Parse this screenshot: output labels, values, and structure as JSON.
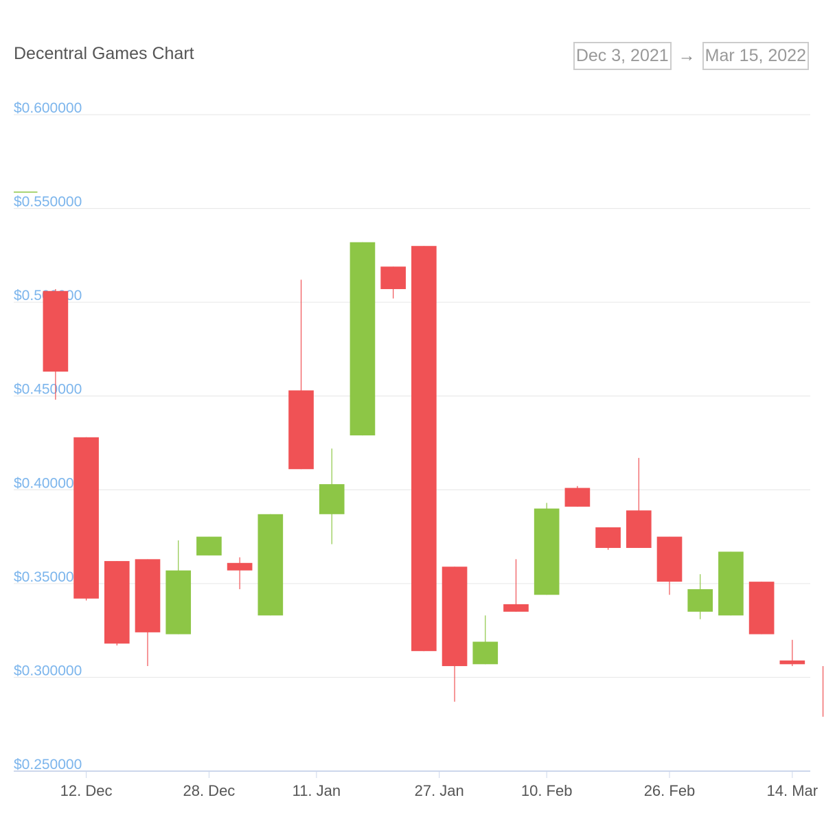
{
  "header": {
    "title": "Decentral Games Chart",
    "range_from": "Dec 3, 2021",
    "range_arrow": "→",
    "range_to": "Mar 15, 2022"
  },
  "colors": {
    "up": "#8dc646",
    "down": "#f05255",
    "grid": "#e6e6e6",
    "axis": "#ccd6eb"
  },
  "chart_data": {
    "type": "candlestick",
    "ylim": [
      0.25,
      0.6
    ],
    "y_ticks": [
      {
        "value": 0.6,
        "label": "$0.600000"
      },
      {
        "value": 0.55,
        "label": "$0.550000"
      },
      {
        "value": 0.5,
        "label": "$0.500000"
      },
      {
        "value": 0.45,
        "label": "$0.450000"
      },
      {
        "value": 0.4,
        "label": "$0.400000"
      },
      {
        "value": 0.35,
        "label": "$0.350000"
      },
      {
        "value": 0.3,
        "label": "$0.300000"
      },
      {
        "value": 0.25,
        "label": "$0.250000"
      }
    ],
    "x_ticks": [
      {
        "date": "2021-12-12",
        "label": "12. Dec"
      },
      {
        "date": "2021-12-28",
        "label": "28. Dec"
      },
      {
        "date": "2022-01-11",
        "label": "11. Jan"
      },
      {
        "date": "2022-01-27",
        "label": "27. Jan"
      },
      {
        "date": "2022-02-10",
        "label": "10. Feb"
      },
      {
        "date": "2022-02-26",
        "label": "26. Feb"
      },
      {
        "date": "2022-03-14",
        "label": "14. Mar"
      }
    ],
    "x_range": [
      "2021-12-03",
      "2022-03-15"
    ],
    "candles": [
      {
        "date": "2021-12-04",
        "open": 0.559,
        "high": 0.559,
        "low": 0.559,
        "close": 0.559
      },
      {
        "date": "2021-12-08",
        "open": 0.506,
        "high": 0.507,
        "low": 0.448,
        "close": 0.463
      },
      {
        "date": "2021-12-12",
        "open": 0.428,
        "high": 0.428,
        "low": 0.341,
        "close": 0.342
      },
      {
        "date": "2021-12-16",
        "open": 0.362,
        "high": 0.362,
        "low": 0.317,
        "close": 0.318
      },
      {
        "date": "2021-12-20",
        "open": 0.363,
        "high": 0.363,
        "low": 0.306,
        "close": 0.324
      },
      {
        "date": "2021-12-24",
        "open": 0.323,
        "high": 0.373,
        "low": 0.323,
        "close": 0.357
      },
      {
        "date": "2021-12-28",
        "open": 0.365,
        "high": 0.375,
        "low": 0.365,
        "close": 0.375
      },
      {
        "date": "2022-01-01",
        "open": 0.361,
        "high": 0.364,
        "low": 0.347,
        "close": 0.357
      },
      {
        "date": "2022-01-05",
        "open": 0.333,
        "high": 0.387,
        "low": 0.333,
        "close": 0.387
      },
      {
        "date": "2022-01-09",
        "open": 0.453,
        "high": 0.512,
        "low": 0.411,
        "close": 0.411
      },
      {
        "date": "2022-01-13",
        "open": 0.387,
        "high": 0.422,
        "low": 0.371,
        "close": 0.403
      },
      {
        "date": "2022-01-17",
        "open": 0.429,
        "high": 0.532,
        "low": 0.429,
        "close": 0.532
      },
      {
        "date": "2022-01-21",
        "open": 0.519,
        "high": 0.519,
        "low": 0.502,
        "close": 0.507
      },
      {
        "date": "2022-01-25",
        "open": 0.53,
        "high": 0.53,
        "low": 0.314,
        "close": 0.314
      },
      {
        "date": "2022-01-29",
        "open": 0.359,
        "high": 0.359,
        "low": 0.287,
        "close": 0.306
      },
      {
        "date": "2022-02-02",
        "open": 0.307,
        "high": 0.333,
        "low": 0.307,
        "close": 0.319
      },
      {
        "date": "2022-02-06",
        "open": 0.339,
        "high": 0.363,
        "low": 0.335,
        "close": 0.335
      },
      {
        "date": "2022-02-10",
        "open": 0.344,
        "high": 0.393,
        "low": 0.344,
        "close": 0.39
      },
      {
        "date": "2022-02-14",
        "open": 0.401,
        "high": 0.402,
        "low": 0.391,
        "close": 0.391
      },
      {
        "date": "2022-02-18",
        "open": 0.38,
        "high": 0.38,
        "low": 0.368,
        "close": 0.369
      },
      {
        "date": "2022-02-22",
        "open": 0.389,
        "high": 0.417,
        "low": 0.369,
        "close": 0.369
      },
      {
        "date": "2022-02-26",
        "open": 0.375,
        "high": 0.375,
        "low": 0.344,
        "close": 0.351
      },
      {
        "date": "2022-03-02",
        "open": 0.335,
        "high": 0.355,
        "low": 0.331,
        "close": 0.347
      },
      {
        "date": "2022-03-06",
        "open": 0.333,
        "high": 0.367,
        "low": 0.333,
        "close": 0.367
      },
      {
        "date": "2022-03-10",
        "open": 0.351,
        "high": 0.351,
        "low": 0.323,
        "close": 0.323
      },
      {
        "date": "2022-03-14",
        "open": 0.309,
        "high": 0.32,
        "low": 0.306,
        "close": 0.307
      },
      {
        "date": "2022-03-18",
        "open": 0.306,
        "high": 0.306,
        "low": 0.279,
        "close": 0.287
      }
    ]
  }
}
